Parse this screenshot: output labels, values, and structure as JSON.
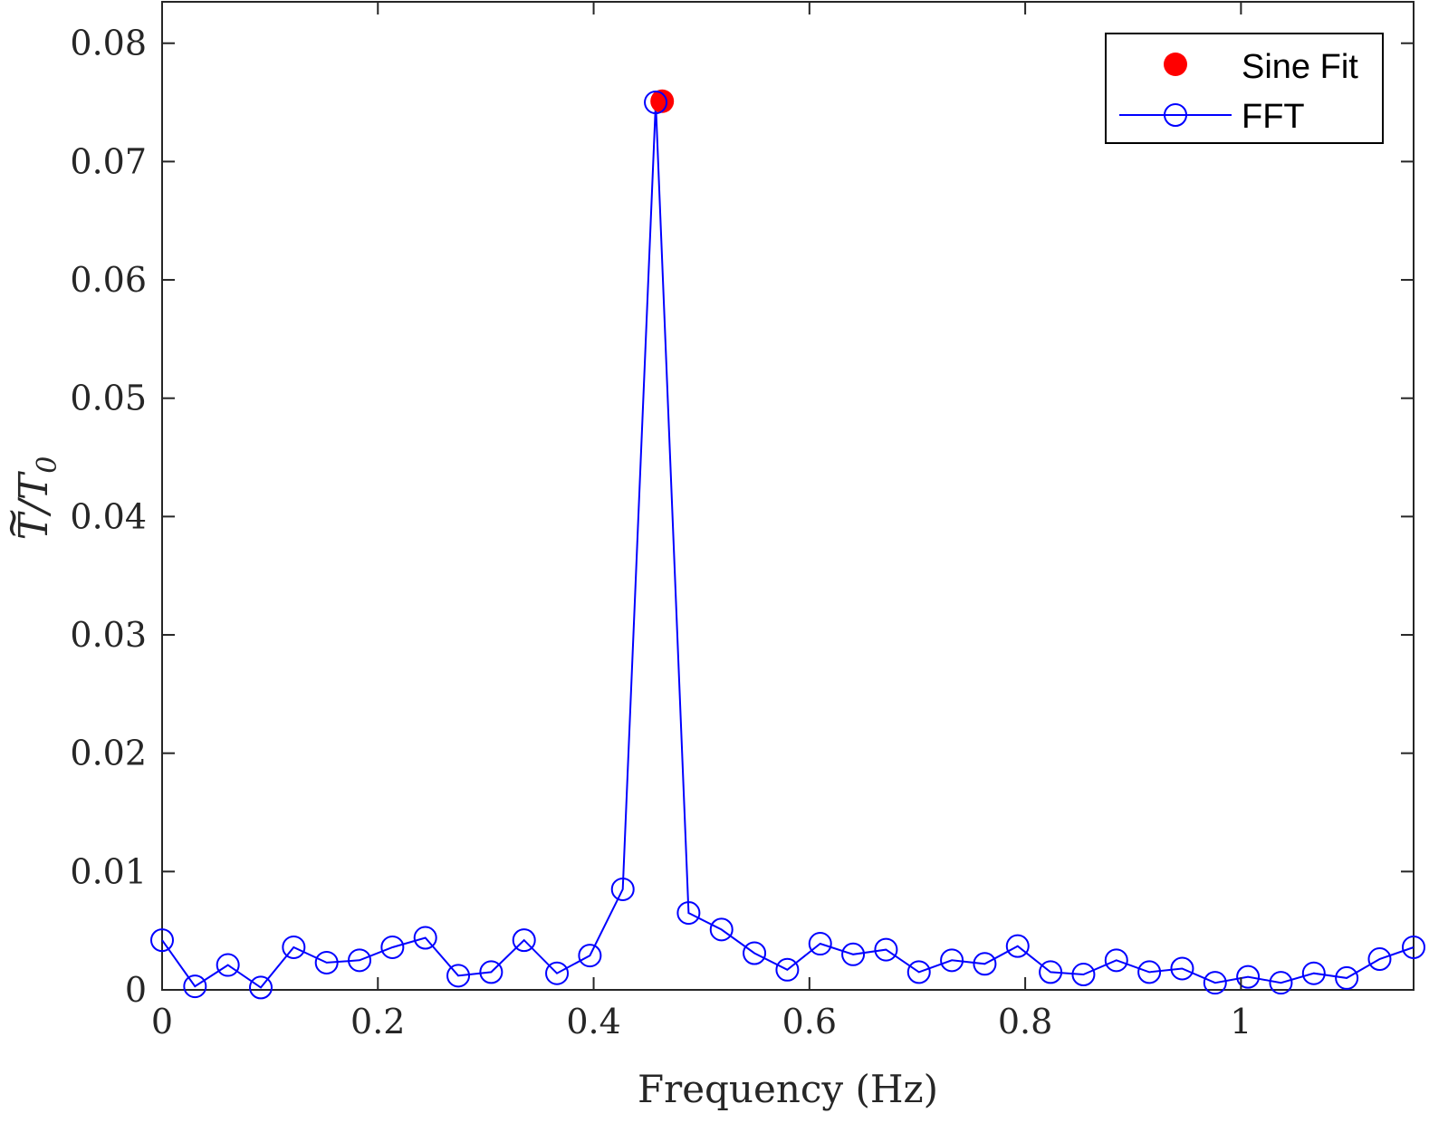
{
  "chart_data": {
    "type": "line",
    "xlabel": "Frequency (Hz)",
    "ylabel": {
      "base": "T",
      "accent": "~",
      "sep": "/",
      "denom": "T",
      "sub": "0"
    },
    "xlim": [
      0,
      1.16
    ],
    "ylim": [
      0,
      0.0835
    ],
    "x_ticks": [
      0,
      0.2,
      0.4,
      0.6,
      0.8,
      1
    ],
    "x_tick_labels": [
      "0",
      "0.2",
      "0.4",
      "0.6",
      "0.8",
      "1"
    ],
    "y_ticks": [
      0,
      0.01,
      0.02,
      0.03,
      0.04,
      0.05,
      0.06,
      0.07,
      0.08
    ],
    "y_tick_labels": [
      "0",
      "0.01",
      "0.02",
      "0.03",
      "0.04",
      "0.05",
      "0.06",
      "0.07",
      "0.08"
    ],
    "grid": false,
    "legend_position": "top-right",
    "series": [
      {
        "name": "Sine Fit",
        "color": "#ff0000",
        "marker": "filled-circle",
        "line": false,
        "x": [
          0.4635
        ],
        "y": [
          0.0751
        ]
      },
      {
        "name": "FFT",
        "color": "#0000ff",
        "marker": "open-circle",
        "line": true,
        "x": [
          0,
          0.0305,
          0.061,
          0.0915,
          0.122,
          0.1525,
          0.183,
          0.2135,
          0.244,
          0.2745,
          0.305,
          0.3355,
          0.366,
          0.3965,
          0.427,
          0.4575,
          0.488,
          0.5185,
          0.549,
          0.5795,
          0.61,
          0.6405,
          0.671,
          0.7015,
          0.732,
          0.7625,
          0.793,
          0.8235,
          0.854,
          0.8845,
          0.915,
          0.9455,
          0.976,
          1.0065,
          1.037,
          1.0675,
          1.098,
          1.1285,
          1.16
        ],
        "y": [
          0.0042,
          0.0003,
          0.0021,
          0.0002,
          0.0036,
          0.0023,
          0.0025,
          0.0036,
          0.0044,
          0.0012,
          0.0015,
          0.0042,
          0.0014,
          0.0029,
          0.0085,
          0.075,
          0.0065,
          0.0051,
          0.0031,
          0.0017,
          0.0039,
          0.003,
          0.0034,
          0.0015,
          0.0025,
          0.0022,
          0.0037,
          0.0015,
          0.0013,
          0.0025,
          0.0015,
          0.0018,
          0.0006,
          0.0011,
          0.0006,
          0.0014,
          0.001,
          0.0026,
          0.0036
        ]
      }
    ]
  }
}
